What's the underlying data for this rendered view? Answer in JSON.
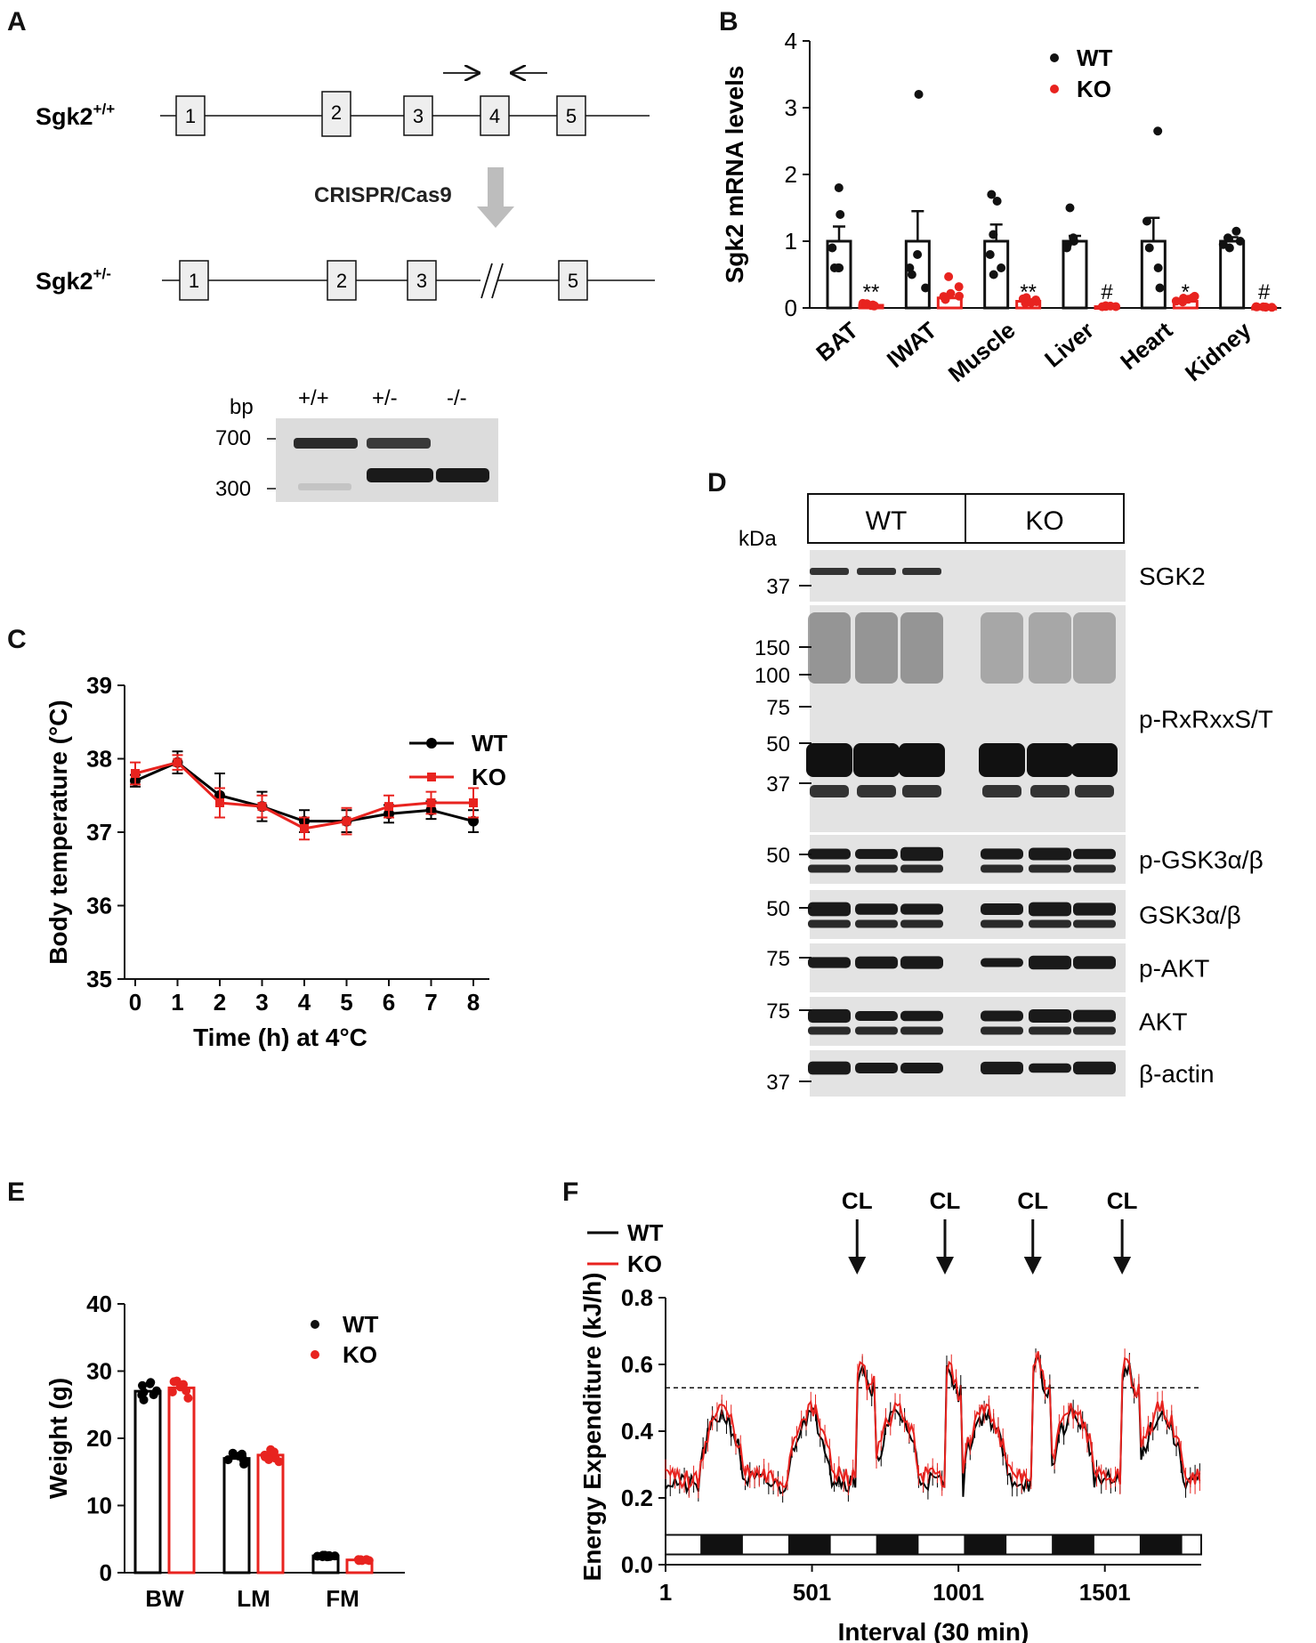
{
  "figure": {
    "panels": {
      "A": {
        "label": "A",
        "wt_allele": "Sgk2",
        "wt_sup": "+/+",
        "het_allele": "Sgk2",
        "het_sup": "+/-",
        "exons_wt": [
          "1",
          "2",
          "3",
          "4",
          "5"
        ],
        "exons_het": [
          "1",
          "2",
          "3",
          "5"
        ],
        "method": "CRISPR/Cas9",
        "gel": {
          "bp_label": "bp",
          "markers": [
            "700",
            "300"
          ],
          "lanes": [
            "+/+",
            "+/-",
            "-/-"
          ]
        }
      },
      "B": {
        "label": "B"
      },
      "C": {
        "label": "C"
      },
      "D": {
        "label": "D",
        "groups": [
          "WT",
          "KO"
        ],
        "kda_label": "kDa",
        "blots": [
          {
            "name": "SGK2",
            "markers": [
              "37"
            ]
          },
          {
            "name": "p-RxRxxS/T",
            "markers": [
              "150",
              "100",
              "75",
              "50",
              "37"
            ]
          },
          {
            "name": "p-GSK3α/β",
            "markers": [
              "50"
            ]
          },
          {
            "name": "GSK3α/β",
            "markers": [
              "50"
            ]
          },
          {
            "name": "p-AKT",
            "markers": [
              "75"
            ]
          },
          {
            "name": "AKT",
            "markers": [
              "75"
            ]
          },
          {
            "name": "β-actin",
            "markers": [
              "37"
            ]
          }
        ]
      },
      "E": {
        "label": "E"
      },
      "F": {
        "label": "F",
        "arrow_label": "CL"
      }
    }
  },
  "chart_data": [
    {
      "panel": "B",
      "type": "bar",
      "ylabel": "Sgk2 mRNA levels",
      "ylim": [
        0,
        4
      ],
      "yticks": [
        "0",
        "1",
        "2",
        "3",
        "4"
      ],
      "categories": [
        "BAT",
        "IWAT",
        "Muscle",
        "Liver",
        "Heart",
        "Kidney"
      ],
      "series": [
        {
          "name": "WT",
          "color": "#000000",
          "values": [
            1.0,
            1.0,
            1.0,
            1.0,
            1.0,
            1.0
          ],
          "sem": [
            0.22,
            0.45,
            0.25,
            0.08,
            0.35,
            0.06
          ]
        },
        {
          "name": "KO",
          "color": "#e8231f",
          "values": [
            0.04,
            0.15,
            0.1,
            0.02,
            0.1,
            0.01
          ],
          "sem": [
            0.02,
            0.05,
            0.04,
            0.01,
            0.04,
            0.005
          ]
        }
      ],
      "significance": [
        "**",
        "",
        "**",
        "#",
        "*",
        "#"
      ],
      "legend": "top-right"
    },
    {
      "panel": "C",
      "type": "line",
      "xlabel": "Time (h) at 4°C",
      "ylabel": "Body temperature (°C)",
      "x": [
        0,
        1,
        2,
        3,
        4,
        5,
        6,
        7,
        8
      ],
      "xticks": [
        "0",
        "1",
        "2",
        "3",
        "4",
        "5",
        "6",
        "7",
        "8"
      ],
      "yticks": [
        "35",
        "36",
        "37",
        "38",
        "39"
      ],
      "ylim": [
        35,
        39
      ],
      "series": [
        {
          "name": "WT",
          "color": "#000000",
          "values": [
            37.7,
            37.95,
            37.5,
            37.35,
            37.15,
            37.15,
            37.25,
            37.3,
            37.15
          ],
          "err": [
            0.08,
            0.15,
            0.3,
            0.2,
            0.15,
            0.15,
            0.12,
            0.12,
            0.15
          ]
        },
        {
          "name": "KO",
          "color": "#e8231f",
          "values": [
            37.8,
            37.95,
            37.4,
            37.35,
            37.05,
            37.15,
            37.35,
            37.4,
            37.4
          ],
          "err": [
            0.15,
            0.1,
            0.2,
            0.15,
            0.15,
            0.18,
            0.15,
            0.15,
            0.2
          ]
        }
      ],
      "legend": "top-right"
    },
    {
      "panel": "E",
      "type": "bar",
      "ylabel": "Weight (g)",
      "ylim": [
        0,
        40
      ],
      "yticks": [
        "0",
        "10",
        "20",
        "30",
        "40"
      ],
      "categories": [
        "BW",
        "LM",
        "FM"
      ],
      "series": [
        {
          "name": "WT",
          "color": "#000000",
          "values": [
            27.0,
            17.0,
            2.5
          ]
        },
        {
          "name": "KO",
          "color": "#e8231f",
          "values": [
            27.5,
            17.5,
            1.9
          ]
        }
      ],
      "legend": "top-right"
    },
    {
      "panel": "F",
      "type": "line",
      "xlabel": "Interval (30 min)",
      "ylabel": "Energy Expenditure (kJ/h)",
      "xlim": [
        1,
        1830
      ],
      "xticks": [
        "1",
        "501",
        "1001",
        "1501"
      ],
      "ylim": [
        0,
        0.8
      ],
      "yticks": [
        "0.0",
        "0.2",
        "0.4",
        "0.6",
        "0.8"
      ],
      "reference_line": 0.53,
      "arrows_at": [
        655,
        955,
        1255,
        1560
      ],
      "series": [
        {
          "name": "WT",
          "color": "#000000"
        },
        {
          "name": "KO",
          "color": "#e8231f"
        }
      ],
      "legend": "top-left"
    }
  ]
}
